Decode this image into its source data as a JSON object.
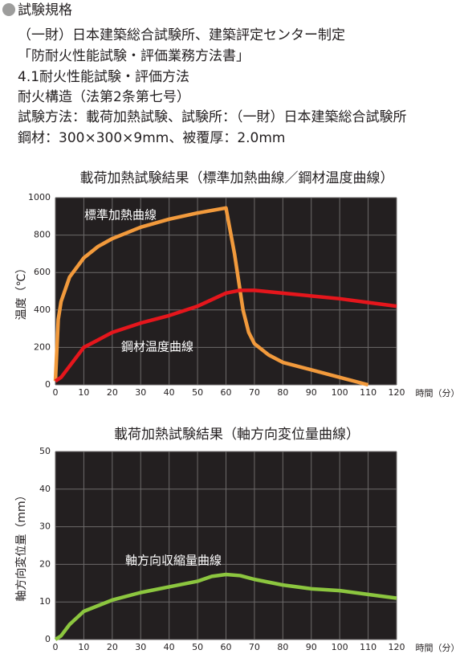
{
  "header": {
    "title": "試験規格",
    "lines": [
      "（一財）日本建築総合試験所、建築評定センター制定",
      "「防耐火性能試験・評価業務方法書」",
      "4.1耐火性能試験・評価方法",
      "耐火構造（法第2条第七号）",
      "試験方法：載荷加熱試験、試験所：（一財）日本建築総合試験所",
      "鋼材：300×300×9mm、被覆厚：2.0mm"
    ]
  },
  "chart_data": [
    {
      "type": "line",
      "title": "載荷加熱試験結果（標準加熱曲線／鋼材温度曲線）",
      "ylabel": "温度（℃）",
      "xlabel": "時間（分）",
      "xlim": [
        0,
        120
      ],
      "xticks": [
        0,
        10,
        20,
        30,
        40,
        50,
        60,
        70,
        80,
        90,
        100,
        110,
        120
      ],
      "ylim": [
        0,
        1000
      ],
      "yticks": [
        0,
        200,
        400,
        600,
        800,
        1000
      ],
      "grid": true,
      "annotations": [
        "標準加熱曲線",
        "鋼材温度曲線"
      ],
      "series": [
        {
          "name": "標準加熱曲線",
          "color": "#f29a3c",
          "x": [
            0,
            1,
            2,
            5,
            10,
            15,
            20,
            30,
            40,
            50,
            60,
            63,
            66,
            68,
            70,
            75,
            80,
            90,
            100,
            110
          ],
          "values": [
            20,
            349,
            445,
            576,
            678,
            739,
            781,
            842,
            885,
            918,
            945,
            700,
            400,
            280,
            220,
            160,
            120,
            80,
            40,
            0
          ]
        },
        {
          "name": "鋼材温度曲線",
          "color": "#e5161c",
          "x": [
            0,
            2,
            5,
            10,
            15,
            20,
            30,
            40,
            50,
            60,
            65,
            70,
            80,
            90,
            100,
            110,
            120
          ],
          "values": [
            20,
            40,
            100,
            200,
            240,
            280,
            330,
            370,
            420,
            490,
            505,
            505,
            490,
            475,
            460,
            440,
            420
          ]
        }
      ]
    },
    {
      "type": "line",
      "title": "載荷加熱試験結果（軸方向変位量曲線）",
      "ylabel": "軸方向変位量（mm）",
      "xlabel": "時間（分）",
      "xlim": [
        0,
        120
      ],
      "xticks": [
        0,
        10,
        20,
        30,
        40,
        50,
        60,
        70,
        80,
        90,
        100,
        110,
        120
      ],
      "ylim": [
        0,
        50
      ],
      "yticks": [
        0,
        10,
        20,
        30,
        40,
        50
      ],
      "grid": true,
      "annotations": [
        "軸方向収縮量曲線"
      ],
      "series": [
        {
          "name": "軸方向収縮量曲線",
          "color": "#8cc63f",
          "x": [
            0,
            2,
            5,
            10,
            15,
            20,
            30,
            40,
            50,
            55,
            60,
            65,
            70,
            80,
            90,
            100,
            110,
            120
          ],
          "values": [
            0,
            1,
            4,
            7.5,
            9,
            10.5,
            12.5,
            14,
            15.5,
            16.8,
            17.3,
            17,
            16,
            14.5,
            13.5,
            13,
            12,
            11
          ]
        }
      ]
    }
  ]
}
